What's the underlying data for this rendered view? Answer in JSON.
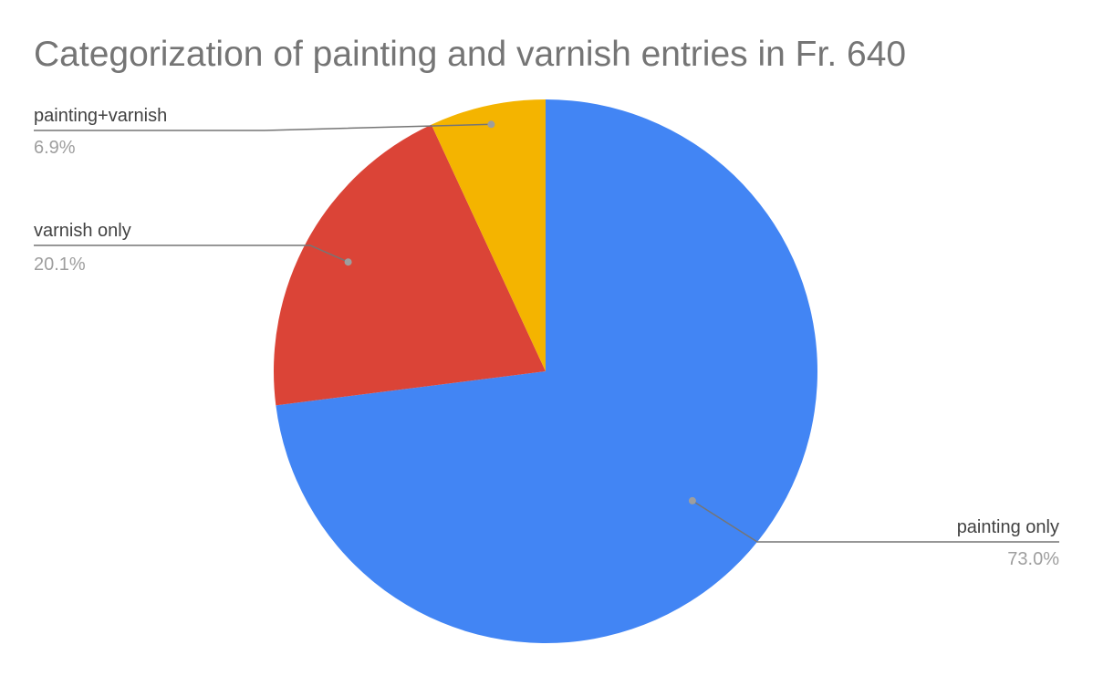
{
  "chart_data": {
    "type": "pie",
    "title": "Categorization of painting and varnish entries in Fr. 640",
    "slices": [
      {
        "label": "painting only",
        "value": 73.0,
        "display": "73.0%",
        "color": "#4285f4"
      },
      {
        "label": "varnish only",
        "value": 20.1,
        "display": "20.1%",
        "color": "#db4437"
      },
      {
        "label": "painting+varnish",
        "value": 6.9,
        "display": "6.9%",
        "color": "#f4b400"
      }
    ],
    "legend": "none",
    "labels": "outside-with-leader-lines"
  }
}
